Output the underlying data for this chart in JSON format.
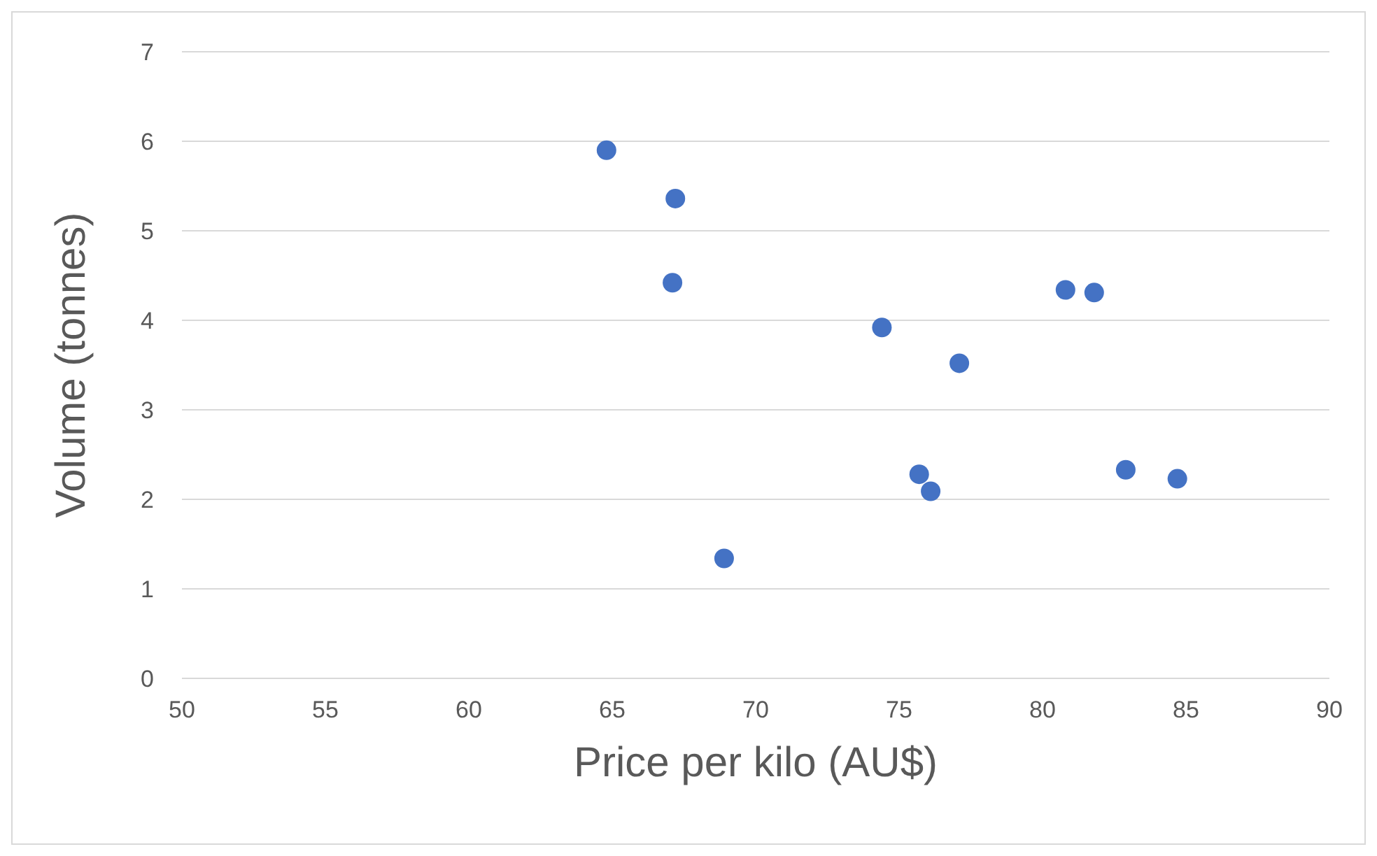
{
  "chart_data": {
    "type": "scatter",
    "xlabel": "Price per kilo (AU$)",
    "ylabel": "Volume (tonnes)",
    "x": [
      64.8,
      67.2,
      67.1,
      68.9,
      74.4,
      77.1,
      75.7,
      76.1,
      80.8,
      81.8,
      82.9,
      84.7
    ],
    "values": [
      5.9,
      5.36,
      4.42,
      1.34,
      3.92,
      3.52,
      2.28,
      2.09,
      4.34,
      4.31,
      2.33,
      2.23
    ],
    "color": "#4472c4",
    "marker": "circle",
    "xlim": [
      50,
      90
    ],
    "xticks": [
      50,
      55,
      60,
      65,
      70,
      75,
      80,
      85,
      90
    ],
    "ylim": [
      0,
      7
    ],
    "yticks": [
      0,
      1,
      2,
      3,
      4,
      5,
      6,
      7
    ],
    "grid": "y"
  }
}
